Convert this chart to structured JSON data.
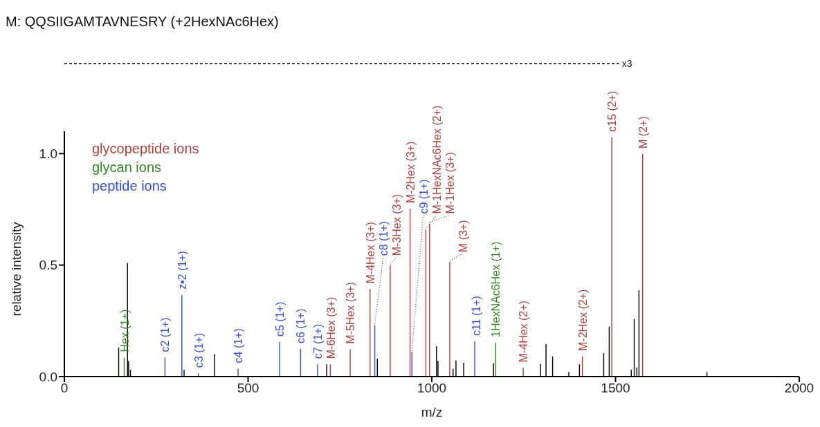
{
  "chart_data": {
    "type": "bar",
    "title": "M: QQSIIGAMTAVNESRY (+2HexNAc6Hex)",
    "xlabel": "m/z",
    "ylabel": "relative intensity",
    "xlim": [
      0,
      2000
    ],
    "xticks": [
      0,
      500,
      1000,
      1500,
      2000
    ],
    "ylim": [
      0,
      1.1
    ],
    "yticks": [
      {
        "value": 0,
        "label": "0.0"
      },
      {
        "value": 0.5,
        "label": "0.5"
      },
      {
        "value": 1,
        "label": "1.0"
      }
    ],
    "legend": "top left",
    "series": [
      {
        "color": "#000000",
        "x": [
          148,
          172,
          175,
          180,
          326,
          409,
          714,
          852,
          1013,
          1017,
          1058,
          1066,
          1087,
          1168,
          1296,
          1311,
          1329,
          1373,
          1402,
          1468,
          1483,
          1543,
          1551,
          1558,
          1564,
          1749
        ],
        "values": [
          0.13,
          0.51,
          0.07,
          0.03,
          0.03,
          0.1,
          0.055,
          0.08,
          0.136,
          0.07,
          0.035,
          0.072,
          0.062,
          0.06,
          0.057,
          0.146,
          0.09,
          0.02,
          0.055,
          0.105,
          0.224,
          0.03,
          0.258,
          0.04,
          0.387,
          0.02
        ]
      },
      {
        "name": "glycopeptide ions",
        "color": "#b5403a",
        "x": [
          724,
          778,
          832,
          887,
          941,
          984,
          994,
          1049,
          1249,
          1410,
          1490,
          1574
        ],
        "values": [
          0.055,
          0.122,
          0.392,
          0.498,
          0.753,
          0.658,
          0.686,
          0.514,
          0.039,
          0.09,
          1.073,
          0.998
        ]
      },
      {
        "name": "glycan ions",
        "color": "#2e8b1e",
        "x": [
          163,
          1174
        ],
        "values": [
          0.085,
          0.152
        ]
      },
      {
        "name": "peptide ions",
        "color": "#3050e0",
        "x": [
          274,
          320,
          365,
          473,
          586,
          643,
          689,
          845,
          946,
          1117
        ],
        "values": [
          0.085,
          0.366,
          0.015,
          0.036,
          0.155,
          0.124,
          0.055,
          0.23,
          0.11,
          0.158
        ]
      }
    ],
    "annotations": [
      "x3",
      {
        "text": "M-6Hex (3+)",
        "x": 724,
        "y": 0.055
      },
      {
        "text": "M-5Hex (3+)",
        "x": 778,
        "y": 0.122
      },
      {
        "text": "M-4Hex (3+)",
        "x": 832,
        "y": 0.392
      },
      {
        "text": "M-3Hex (3+)",
        "x": 887,
        "y": 0.498
      },
      {
        "text": "M-2Hex (3+)",
        "x": 941,
        "y": 0.753
      },
      {
        "text": "M-1HexNAc6Hex (2+)",
        "x": 984,
        "y": 0.658
      },
      {
        "text": "M-1Hex (3+)",
        "x": 994,
        "y": 0.686
      },
      {
        "text": "M (3+)",
        "x": 1049,
        "y": 0.514
      },
      {
        "text": "M-4Hex (2+)",
        "x": 1249,
        "y": 0.039
      },
      {
        "text": "M-2Hex (2+)",
        "x": 1410,
        "y": 0.09
      },
      {
        "text": "c15 (2+)",
        "x": 1490,
        "y": 1.073
      },
      {
        "text": "M (2+)",
        "x": 1574,
        "y": 0.998
      },
      {
        "text": "Hex (1+)",
        "x": 163,
        "y": 0.085
      },
      {
        "text": "1HexNAc6Hex (1+)",
        "x": 1174,
        "y": 0.152
      },
      {
        "text": "c2 (1+)",
        "x": 274,
        "y": 0.085
      },
      {
        "text": "z•2 (1+)",
        "x": 320,
        "y": 0.366
      },
      {
        "text": "c3 (1+)",
        "x": 365,
        "y": 0.015
      },
      {
        "text": "c4 (1+)",
        "x": 473,
        "y": 0.036
      },
      {
        "text": "c5 (1+)",
        "x": 586,
        "y": 0.155
      },
      {
        "text": "c6 (1+)",
        "x": 643,
        "y": 0.124
      },
      {
        "text": "c7 (1+)",
        "x": 689,
        "y": 0.055
      },
      {
        "text": "c8 (1+)",
        "x": 845,
        "y": 0.23
      },
      {
        "text": "c9 (1+)",
        "x": 946,
        "y": 0.11
      },
      {
        "text": "c11 (1+)",
        "x": 1117,
        "y": 0.158
      }
    ]
  }
}
